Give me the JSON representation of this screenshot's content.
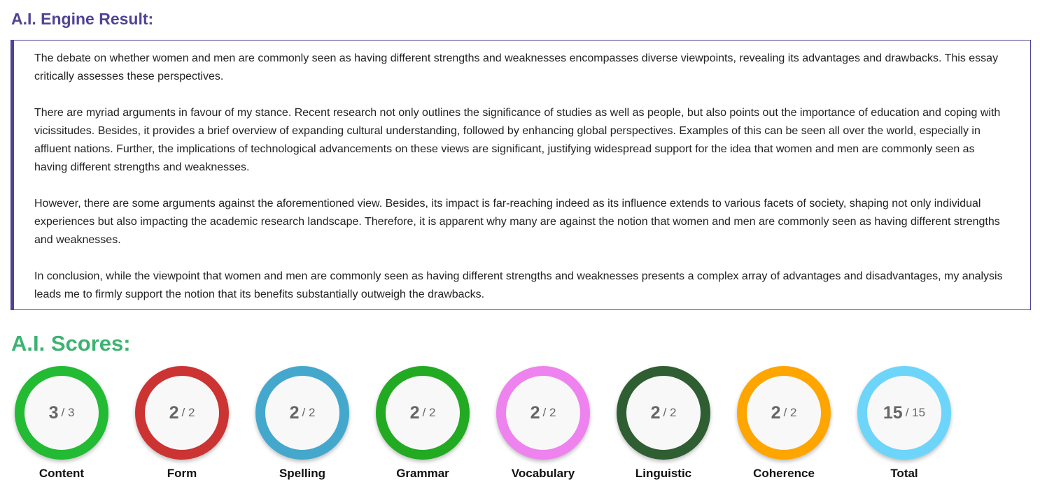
{
  "result": {
    "title": "A.I. Engine Result:",
    "paragraphs": [
      "The debate on whether women and men are commonly seen as having different strengths and weaknesses encompasses diverse viewpoints, revealing its advantages and drawbacks. This essay critically assesses these perspectives.",
      "There are myriad arguments in favour of my stance. Recent research not only outlines the significance of studies as well as people, but also points out the importance of education and coping with vicissitudes. Besides, it provides a brief overview of expanding cultural understanding, followed by enhancing global perspectives. Examples of this can be seen all over the world, especially in affluent nations. Further, the implications of technological advancements on these views are significant, justifying widespread support for the idea that women and men are commonly seen as having different strengths and weaknesses.",
      "However, there are some arguments against the aforementioned view. Besides, its impact is far-reaching indeed as its influence extends to various facets of society, shaping not only individual experiences but also impacting the academic research landscape. Therefore, it is apparent why many are against the notion that women and men are commonly seen as having different strengths and weaknesses.",
      "In conclusion, while the viewpoint that women and men are commonly seen as having different strengths and weaknesses presents a complex array of advantages and disadvantages, my analysis leads me to firmly support the notion that its benefits substantially outweigh the drawbacks."
    ]
  },
  "scores": {
    "title": "A.I. Scores:",
    "items": [
      {
        "label": "Content",
        "value": "3",
        "max": "/ 3",
        "color": "#22bb33"
      },
      {
        "label": "Form",
        "value": "2",
        "max": "/ 2",
        "color": "#cc3333"
      },
      {
        "label": "Spelling",
        "value": "2",
        "max": "/ 2",
        "color": "#44a8cc"
      },
      {
        "label": "Grammar",
        "value": "2",
        "max": "/ 2",
        "color": "#22aa22"
      },
      {
        "label": "Vocabulary",
        "value": "2",
        "max": "/ 2",
        "color": "#ee82ee"
      },
      {
        "label": "Linguistic",
        "value": "2",
        "max": "/ 2",
        "color": "#2f5e33"
      },
      {
        "label": "Coherence",
        "value": "2",
        "max": "/ 2",
        "color": "#ffa500"
      },
      {
        "label": "Total",
        "value": "15",
        "max": "/ 15",
        "color": "#6dd5fa"
      }
    ]
  }
}
